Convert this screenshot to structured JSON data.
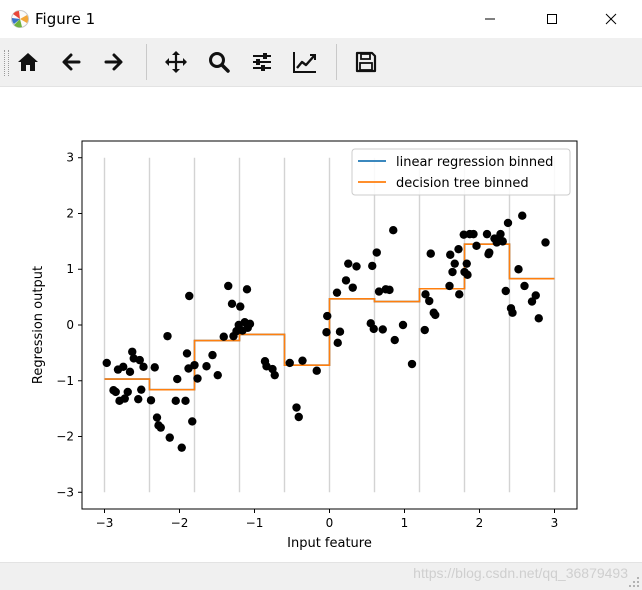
{
  "window": {
    "title": "Figure 1"
  },
  "toolbar": {
    "buttons": [
      {
        "name": "home-button",
        "icon": "home-icon"
      },
      {
        "name": "back-button",
        "icon": "arrow-left-icon"
      },
      {
        "name": "forward-button",
        "icon": "arrow-right-icon"
      },
      {
        "name": "pan-button",
        "icon": "move-icon"
      },
      {
        "name": "zoom-button",
        "icon": "magnifier-icon"
      },
      {
        "name": "subplots-button",
        "icon": "sliders-icon"
      },
      {
        "name": "edit-axis-button",
        "icon": "line-chart-icon"
      },
      {
        "name": "save-button",
        "icon": "floppy-disk-icon"
      }
    ]
  },
  "statusbar": {
    "watermark": "https://blog.csdn.net/qq_36879493"
  },
  "chart_data": {
    "type": "scatter",
    "xlabel": "Input feature",
    "ylabel": "Regression output",
    "xlim": [
      -3.3,
      3.3
    ],
    "ylim": [
      -3.3,
      3.3
    ],
    "xticks": [
      -3,
      -2,
      -1,
      0,
      1,
      2,
      3
    ],
    "yticks": [
      -3,
      -2,
      -1,
      0,
      1,
      2,
      3
    ],
    "tick_labels_x": [
      "−3",
      "−2",
      "−1",
      "0",
      "1",
      "2",
      "3"
    ],
    "tick_labels_y": [
      "−3",
      "−2",
      "−1",
      "0",
      "1",
      "2",
      "3"
    ],
    "bin_edges": [
      -3.0,
      -2.4,
      -1.8,
      -1.2,
      -0.6,
      0.0,
      0.6,
      1.2,
      1.8,
      2.4,
      3.0
    ],
    "vline_range": [
      -3,
      3
    ],
    "legend_location": "upper right",
    "colors": {
      "linear": "#1f77b4",
      "tree": "#ff7f0e",
      "points": "#000000",
      "vlines": "#d3d3d3"
    },
    "series": [
      {
        "name": "linear regression binned",
        "type": "step",
        "x": [
          -3.0,
          -2.4,
          -1.8,
          -1.2,
          -0.6,
          0.0,
          0.6,
          1.2,
          1.8,
          2.4,
          3.0
        ],
        "y": [
          -0.97,
          -1.16,
          -0.28,
          -0.17,
          -0.72,
          0.47,
          0.42,
          0.65,
          1.45,
          0.83,
          0.83
        ]
      },
      {
        "name": "decision tree binned",
        "type": "step",
        "x": [
          -3.0,
          -2.4,
          -1.8,
          -1.2,
          -0.6,
          0.0,
          0.6,
          1.2,
          1.8,
          2.4,
          3.0
        ],
        "y": [
          -0.97,
          -1.16,
          -0.28,
          -0.17,
          -0.72,
          0.47,
          0.42,
          0.65,
          1.45,
          0.83,
          0.83
        ]
      },
      {
        "name": "",
        "type": "scatter",
        "points": [
          [
            -2.97,
            -0.68
          ],
          [
            -2.88,
            -1.17
          ],
          [
            -2.85,
            -1.2
          ],
          [
            -2.82,
            -0.8
          ],
          [
            -2.8,
            -1.36
          ],
          [
            -2.75,
            -0.75
          ],
          [
            -2.73,
            -1.32
          ],
          [
            -2.69,
            -1.2
          ],
          [
            -2.66,
            -0.84
          ],
          [
            -2.63,
            -0.48
          ],
          [
            -2.61,
            -0.6
          ],
          [
            -2.55,
            -1.33
          ],
          [
            -2.53,
            -0.63
          ],
          [
            -2.51,
            -1.16
          ],
          [
            -2.48,
            -0.75
          ],
          [
            -2.38,
            -1.35
          ],
          [
            -2.33,
            -0.76
          ],
          [
            -2.3,
            -1.66
          ],
          [
            -2.28,
            -1.8
          ],
          [
            -2.25,
            -1.84
          ],
          [
            -2.16,
            -0.2
          ],
          [
            -2.13,
            -2.02
          ],
          [
            -2.05,
            -1.36
          ],
          [
            -2.03,
            -0.97
          ],
          [
            -1.97,
            -2.2
          ],
          [
            -1.92,
            -1.36
          ],
          [
            -1.9,
            -0.51
          ],
          [
            -1.88,
            -0.78
          ],
          [
            -1.87,
            0.52
          ],
          [
            -1.83,
            -1.73
          ],
          [
            -1.8,
            -0.72
          ],
          [
            -1.76,
            -0.96
          ],
          [
            -1.64,
            -0.74
          ],
          [
            -1.56,
            -0.54
          ],
          [
            -1.49,
            -0.9
          ],
          [
            -1.41,
            -0.21
          ],
          [
            -1.35,
            0.7
          ],
          [
            -1.3,
            0.38
          ],
          [
            -1.28,
            -0.2
          ],
          [
            -1.24,
            -0.11
          ],
          [
            -1.21,
            0.0
          ],
          [
            -1.19,
            0.33
          ],
          [
            -1.16,
            -0.1
          ],
          [
            -1.13,
            0.05
          ],
          [
            -1.1,
            0.64
          ],
          [
            -1.09,
            -0.05
          ],
          [
            -1.06,
            0.02
          ],
          [
            -0.86,
            -0.65
          ],
          [
            -0.84,
            -0.74
          ],
          [
            -0.76,
            -0.79
          ],
          [
            -0.73,
            -0.9
          ],
          [
            -0.53,
            -0.68
          ],
          [
            -0.44,
            -1.48
          ],
          [
            -0.41,
            -1.65
          ],
          [
            -0.36,
            -0.64
          ],
          [
            -0.17,
            -0.82
          ],
          [
            -0.04,
            -0.13
          ],
          [
            -0.03,
            0.16
          ],
          [
            0.1,
            0.58
          ],
          [
            0.11,
            -0.32
          ],
          [
            0.14,
            -0.12
          ],
          [
            0.22,
            0.8
          ],
          [
            0.25,
            1.1
          ],
          [
            0.31,
            0.67
          ],
          [
            0.36,
            1.05
          ],
          [
            0.55,
            0.03
          ],
          [
            0.57,
            1.06
          ],
          [
            0.59,
            -0.07
          ],
          [
            0.63,
            1.3
          ],
          [
            0.66,
            0.6
          ],
          [
            0.71,
            -0.08
          ],
          [
            0.75,
            0.64
          ],
          [
            0.8,
            0.63
          ],
          [
            0.85,
            1.7
          ],
          [
            0.87,
            -0.27
          ],
          [
            0.98,
            0.0
          ],
          [
            1.1,
            -0.7
          ],
          [
            1.27,
            -0.09
          ],
          [
            1.28,
            0.55
          ],
          [
            1.33,
            0.43
          ],
          [
            1.35,
            1.28
          ],
          [
            1.39,
            0.22
          ],
          [
            1.41,
            0.18
          ],
          [
            1.6,
            0.7
          ],
          [
            1.61,
            1.26
          ],
          [
            1.64,
            0.95
          ],
          [
            1.67,
            1.1
          ],
          [
            1.72,
            1.36
          ],
          [
            1.73,
            0.55
          ],
          [
            1.79,
            1.62
          ],
          [
            1.8,
            0.95
          ],
          [
            1.83,
            1.1
          ],
          [
            1.84,
            0.9
          ],
          [
            1.87,
            1.63
          ],
          [
            1.92,
            1.63
          ],
          [
            1.96,
            1.42
          ],
          [
            2.1,
            1.63
          ],
          [
            2.12,
            1.27
          ],
          [
            2.13,
            1.3
          ],
          [
            2.2,
            1.55
          ],
          [
            2.23,
            1.48
          ],
          [
            2.25,
            1.53
          ],
          [
            2.28,
            1.63
          ],
          [
            2.31,
            1.5
          ],
          [
            2.35,
            0.61
          ],
          [
            2.38,
            1.83
          ],
          [
            2.42,
            0.3
          ],
          [
            2.44,
            0.22
          ],
          [
            2.52,
            1.0
          ],
          [
            2.57,
            1.96
          ],
          [
            2.6,
            0.7
          ],
          [
            2.7,
            0.42
          ],
          [
            2.75,
            0.53
          ],
          [
            2.79,
            0.12
          ],
          [
            2.88,
            1.48
          ]
        ]
      }
    ]
  }
}
